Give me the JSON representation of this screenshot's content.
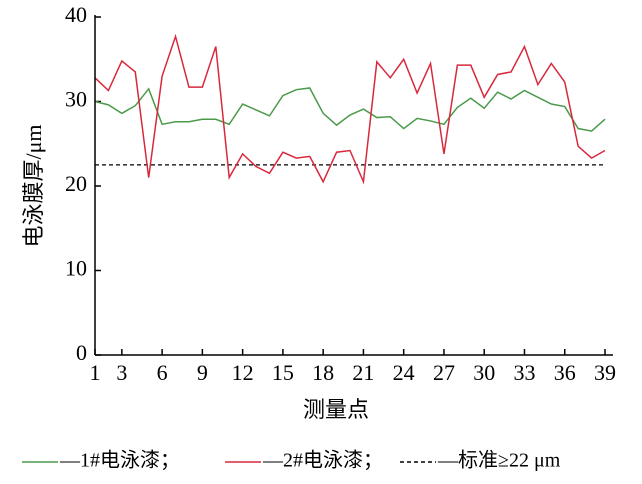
{
  "chart_data": {
    "type": "line",
    "xlabel": "测量点",
    "ylabel": "电泳膜厚/μm",
    "x": [
      1,
      2,
      3,
      4,
      5,
      6,
      7,
      8,
      9,
      10,
      11,
      12,
      13,
      14,
      15,
      16,
      17,
      18,
      19,
      20,
      21,
      22,
      23,
      24,
      25,
      26,
      27,
      28,
      29,
      30,
      31,
      32,
      33,
      34,
      35,
      36,
      37,
      38,
      39
    ],
    "series": [
      {
        "name": "—1#电泳漆；",
        "color": "#4a9a4a",
        "values": [
          30.0,
          29.6,
          28.6,
          29.5,
          31.5,
          27.3,
          27.6,
          27.6,
          27.9,
          27.9,
          27.3,
          29.7,
          29.0,
          28.3,
          30.7,
          31.4,
          31.6,
          28.6,
          27.2,
          28.4,
          29.1,
          28.1,
          28.2,
          26.8,
          28.0,
          27.7,
          27.3,
          29.3,
          30.4,
          29.2,
          31.1,
          30.3,
          31.3,
          30.5,
          29.7,
          29.4,
          26.8,
          26.5,
          27.9
        ]
      },
      {
        "name": "—2#电泳漆；",
        "color": "#d8283c",
        "values": [
          32.8,
          31.3,
          34.8,
          33.5,
          21.0,
          33.0,
          37.7,
          31.7,
          31.7,
          36.5,
          21.0,
          23.8,
          22.3,
          21.5,
          24.0,
          23.3,
          23.5,
          20.5,
          24.0,
          24.2,
          20.5,
          34.7,
          32.8,
          35.0,
          31.0,
          34.5,
          23.8,
          34.3,
          34.3,
          30.5,
          33.2,
          33.5,
          36.5,
          32.0,
          34.5,
          32.3,
          24.7,
          23.3,
          24.2
        ]
      }
    ],
    "reference": {
      "name": "—标准≥22 μm",
      "value": 22.5,
      "color": "#000000",
      "dashed": true
    },
    "xlim": [
      1,
      39
    ],
    "xticks": [
      1,
      3,
      6,
      9,
      12,
      15,
      18,
      21,
      24,
      27,
      30,
      33,
      36,
      39
    ],
    "ylim": [
      0,
      40
    ],
    "yticks": [
      0,
      10,
      20,
      30,
      40
    ],
    "grid": false
  }
}
